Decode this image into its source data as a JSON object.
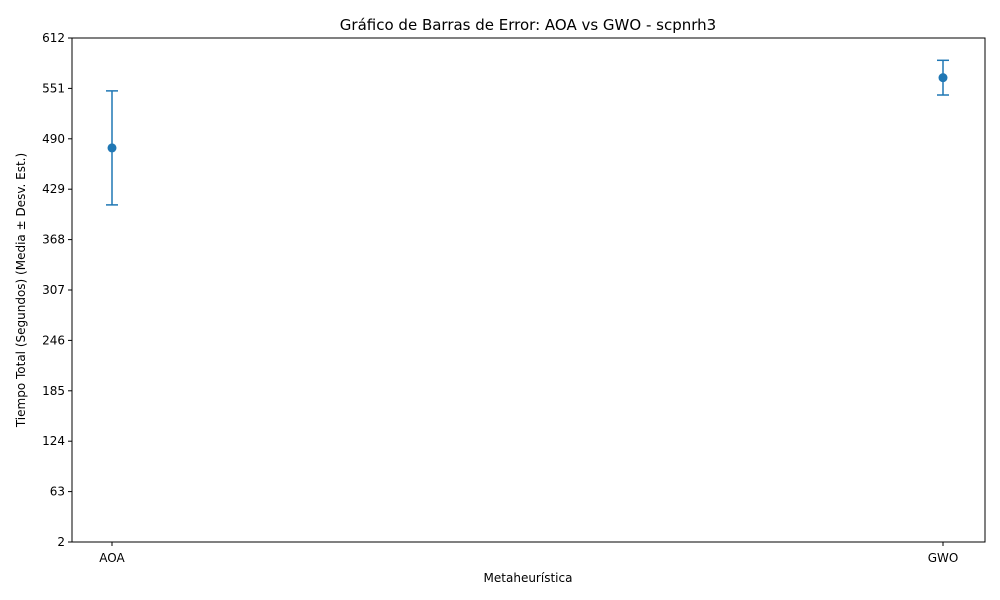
{
  "chart_data": {
    "type": "scatter",
    "title": "Gráfico de Barras de Error: AOA vs GWO - scpnrh3",
    "xlabel": "Metaheurística",
    "ylabel": "Tiempo Total (Segundos) (Media ± Desv. Est.)",
    "categories": [
      "AOA",
      "GWO"
    ],
    "series": [
      {
        "values": [
          479,
          564
        ],
        "errors": [
          69,
          21
        ],
        "color": "#1f77b4"
      }
    ],
    "ylim": [
      2,
      612
    ],
    "yticks": [
      "2",
      "63",
      "124",
      "185",
      "246",
      "307",
      "368",
      "429",
      "490",
      "551",
      "612"
    ],
    "grid": false,
    "legend": "none"
  }
}
